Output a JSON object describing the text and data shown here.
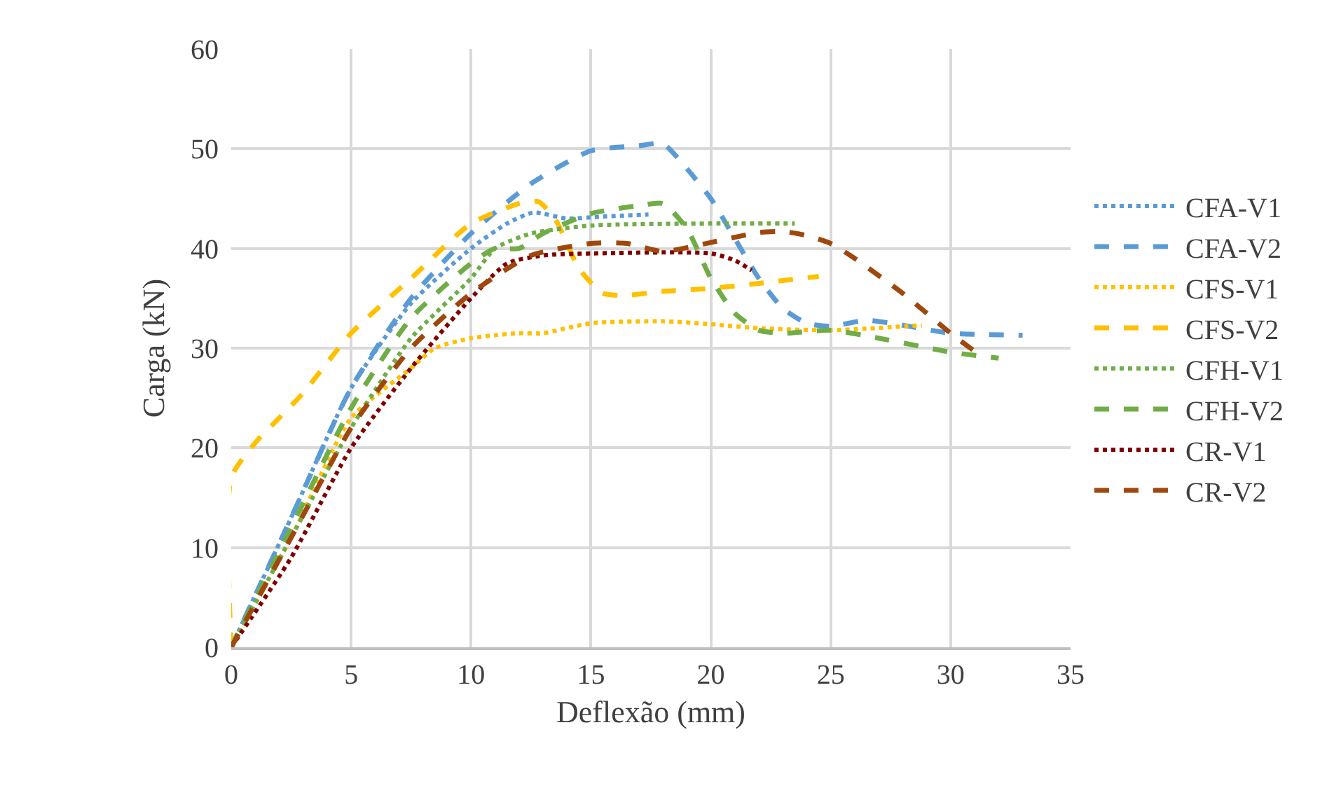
{
  "chart_data": {
    "type": "line",
    "xlabel": "Deflexão (mm)",
    "ylabel": "Carga (kN)",
    "xlim": [
      0,
      35
    ],
    "xticks": [
      0,
      5,
      10,
      15,
      20,
      25,
      30,
      35
    ],
    "ylim": [
      0,
      60
    ],
    "yticks": [
      0,
      10,
      20,
      30,
      40,
      50,
      60
    ],
    "grid": true,
    "legend": "right",
    "marker": "none",
    "series": [
      {
        "name": "CFA-V1",
        "color": "#5b9bd5",
        "line_style": "dotted",
        "x": [
          0,
          2.5,
          5,
          7.5,
          10,
          11.5,
          12.6,
          14,
          15.5,
          17.4
        ],
        "values": [
          0,
          13,
          26,
          34.5,
          40,
          42.5,
          43.6,
          43,
          43.2,
          43.4
        ]
      },
      {
        "name": "CFA-V2",
        "color": "#5b9bd5",
        "line_style": "dashed",
        "x": [
          0,
          2.5,
          5,
          7.5,
          10,
          12.5,
          15,
          17,
          18,
          19,
          20,
          21,
          22,
          23,
          24,
          25,
          26.5,
          28,
          30,
          33
        ],
        "values": [
          0,
          13,
          26,
          35,
          41.5,
          46.5,
          49.8,
          50.3,
          50.5,
          48,
          45,
          41,
          37,
          34,
          32.5,
          32.2,
          32.8,
          32.3,
          31.5,
          31.3
        ]
      },
      {
        "name": "CFS-V1",
        "color": "#ffc000",
        "line_style": "dotted",
        "x": [
          0,
          2.5,
          5,
          7.5,
          8.5,
          10,
          12,
          13,
          15,
          18,
          20,
          22,
          25,
          28.8
        ],
        "values": [
          0,
          11,
          23,
          28,
          30,
          31,
          31.5,
          31.5,
          32.5,
          32.7,
          32.4,
          32,
          31.8,
          32.3
        ]
      },
      {
        "name": "CFS-V2",
        "color": "#ffc000",
        "line_style": "dashed",
        "x": [
          0,
          0,
          1,
          2,
          3,
          5,
          7.5,
          10,
          12,
          12.8,
          13.5,
          14.5,
          15.5,
          16.5,
          18,
          20,
          22,
          24.5
        ],
        "values": [
          0,
          17,
          20.5,
          23,
          25.5,
          31.5,
          37,
          42.5,
          44.5,
          44.7,
          43,
          38,
          35.5,
          35.3,
          35.7,
          36,
          36.5,
          37.2
        ]
      },
      {
        "name": "CFH-V1",
        "color": "#70ad47",
        "line_style": "dotted",
        "x": [
          0,
          2.5,
          5,
          7.5,
          10,
          11,
          12.5,
          15,
          20,
          23.5
        ],
        "values": [
          0,
          11,
          22,
          31,
          37,
          40,
          41.5,
          42.3,
          42.5,
          42.5
        ]
      },
      {
        "name": "CFH-V2",
        "color": "#70ad47",
        "line_style": "dashed",
        "x": [
          0,
          2.5,
          5,
          7.5,
          10,
          11,
          12,
          13,
          15,
          17,
          18,
          19,
          20,
          21,
          22,
          23,
          25,
          27,
          30,
          32
        ],
        "values": [
          0,
          12,
          24,
          33,
          38.5,
          40,
          40,
          41.5,
          43.5,
          44.3,
          44.5,
          42,
          37,
          33.5,
          31.8,
          31.5,
          31.8,
          31,
          29.6,
          29
        ]
      },
      {
        "name": "CR-V1",
        "color": "#800000",
        "line_style": "dotted",
        "x": [
          0,
          2.5,
          5,
          7.5,
          10,
          11.5,
          13,
          15,
          20,
          21,
          21.7
        ],
        "values": [
          0,
          9,
          20,
          28,
          35,
          38.5,
          39.3,
          39.5,
          39.5,
          38.8,
          37.8
        ]
      },
      {
        "name": "CR-V2",
        "color": "#9e480e",
        "line_style": "dashed",
        "x": [
          0,
          2.5,
          5,
          7.5,
          10,
          12.5,
          15,
          16.5,
          18,
          20,
          22,
          23,
          24,
          25,
          26,
          28,
          30,
          31.1
        ],
        "values": [
          0,
          11,
          22,
          30,
          35.5,
          39.3,
          40.5,
          40.5,
          39.7,
          40.6,
          41.6,
          41.7,
          41.3,
          40.5,
          39,
          35.5,
          31.5,
          29.5
        ]
      }
    ]
  }
}
